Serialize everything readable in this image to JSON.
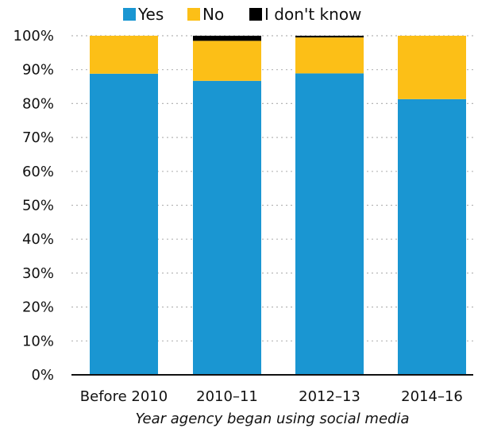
{
  "chart_data": {
    "type": "bar",
    "stacked": true,
    "categories": [
      "Before 2010",
      "2010–11",
      "2012–13",
      "2014–16"
    ],
    "series": [
      {
        "name": "Yes",
        "color": "#1a96d2",
        "values": [
          88.8,
          86.7,
          88.9,
          81.3
        ]
      },
      {
        "name": "No",
        "color": "#fcbf17",
        "values": [
          11.2,
          11.8,
          10.6,
          18.7
        ]
      },
      {
        "name": "I don't know",
        "color": "#000000",
        "values": [
          0,
          1.5,
          0.5,
          0
        ]
      }
    ],
    "title": "",
    "xlabel": "Year agency began using social media",
    "ylabel": "",
    "ylim": [
      0,
      100
    ],
    "yticks": [
      "0%",
      "10%",
      "20%",
      "30%",
      "40%",
      "50%",
      "60%",
      "70%",
      "80%",
      "90%",
      "100%"
    ],
    "grid": true,
    "legend": "top"
  }
}
